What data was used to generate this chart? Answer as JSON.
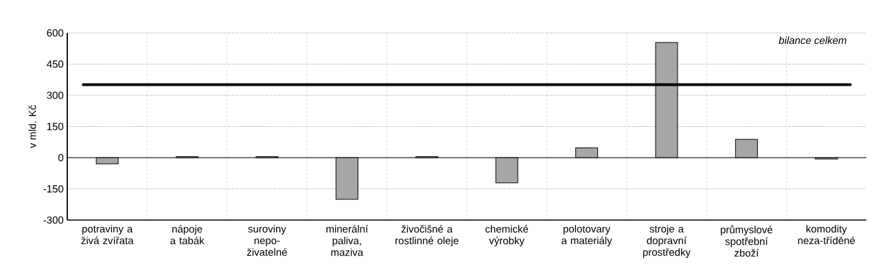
{
  "chart_data": {
    "type": "bar",
    "ylabel": "v mld. Kč",
    "categories": [
      "potraviny a živá zvířata",
      "nápoje a tabák",
      "suroviny nepo-živatelné",
      "minerální paliva, maziva",
      "živočišné a rostlinné oleje",
      "chemické výrobky",
      "polotovary a materiály",
      "stroje a dopravní prostředky",
      "průmyslové spotřební zboží",
      "komodity neza-tříděné"
    ],
    "values": [
      -30,
      5,
      5,
      -200,
      5,
      -121,
      47,
      554,
      88,
      -7
    ],
    "color": "#a6a6a6",
    "ylim": [
      -300,
      600
    ],
    "yticks": [
      -300,
      -150,
      0,
      150,
      300,
      450,
      600
    ],
    "grid": true,
    "ref_lines": [
      {
        "axis": "y",
        "value": 351,
        "label": "bilance celkem",
        "color": "#000000"
      }
    ]
  }
}
